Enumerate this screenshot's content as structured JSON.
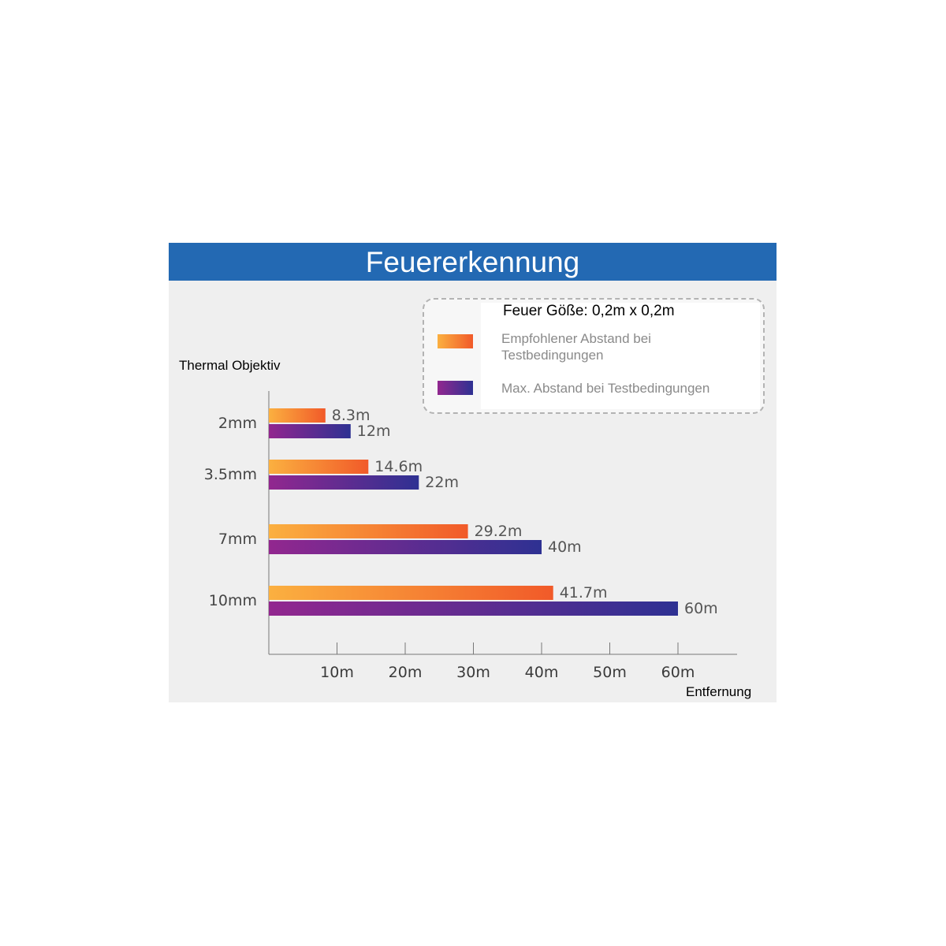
{
  "header": {
    "title": "Feuererkennung"
  },
  "legend": {
    "title": "Feuer Göße: 0,2m x 0,2m",
    "items": [
      {
        "label": "Empfohlener Abstand bei Testbedingungen",
        "color_start": "#fbb040",
        "color_end": "#f15a29"
      },
      {
        "label": "Max. Abstand bei Testbedingungen",
        "color_start": "#92278f",
        "color_end": "#2e3192"
      }
    ]
  },
  "chart_data": {
    "type": "bar",
    "orientation": "horizontal",
    "categories": [
      "2mm",
      "3.5mm",
      "7mm",
      "10mm"
    ],
    "series": [
      {
        "name": "Empfohlener Abstand bei Testbedingungen",
        "values": [
          8.3,
          14.6,
          29.2,
          41.7
        ],
        "labels": [
          "8.3m",
          "14.6m",
          "29.2m",
          "41.7m"
        ]
      },
      {
        "name": "Max. Abstand bei Testbedingungen",
        "values": [
          12,
          22,
          40,
          60
        ],
        "labels": [
          "12m",
          "22m",
          "40m",
          "60m"
        ]
      }
    ],
    "xticks": [
      10,
      20,
      30,
      40,
      50,
      60
    ],
    "xtick_labels": [
      "10m",
      "20m",
      "30m",
      "40m",
      "50m",
      "60m"
    ],
    "xlim": [
      0,
      68
    ],
    "xlabel": "Entfernung",
    "ylabel": "Thermal Objektiv",
    "legend_position": "top-right",
    "grid": false
  }
}
